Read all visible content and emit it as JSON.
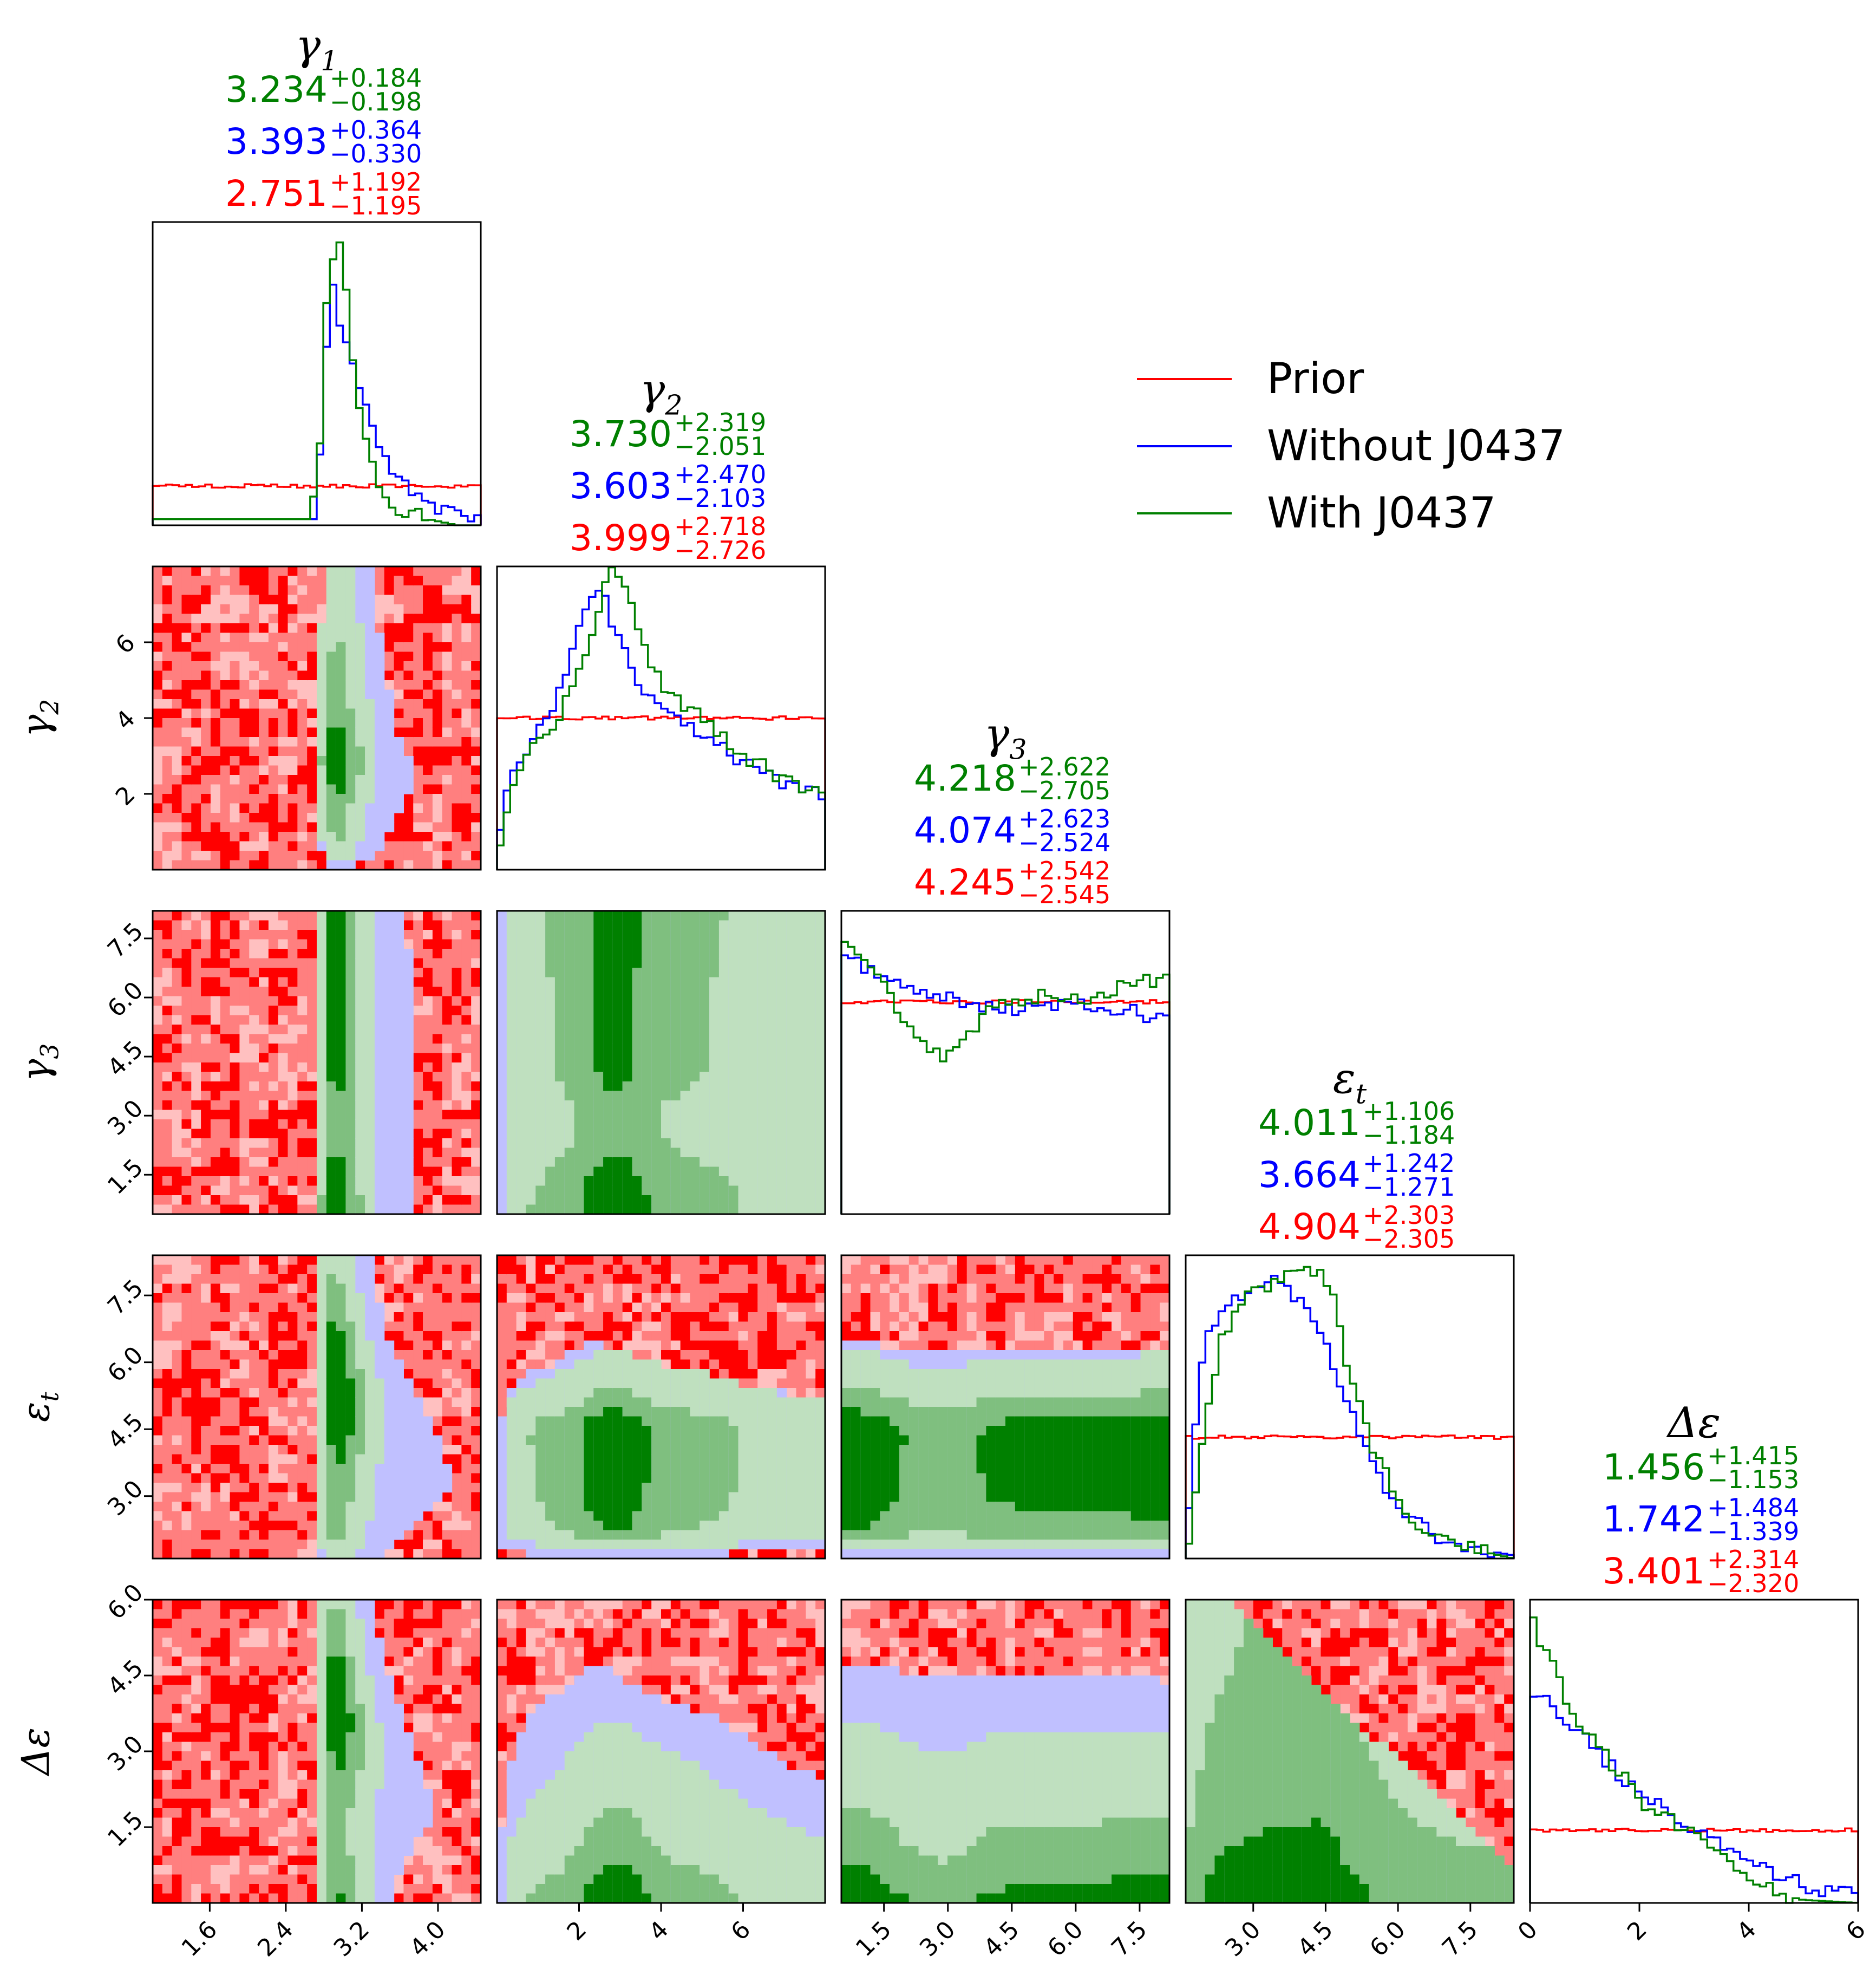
{
  "colors": {
    "prior": "#ff0000",
    "without": "#0000ff",
    "with": "#008000"
  },
  "legend": {
    "placement": "upper-right",
    "entries": [
      {
        "label": "Prior",
        "series": "prior"
      },
      {
        "label": "Without J0437",
        "series": "without"
      },
      {
        "label": "With J0437",
        "series": "with"
      }
    ]
  },
  "chart_data": {
    "type": "corner",
    "grid": false,
    "params": [
      {
        "symbol": "γ",
        "sub": "1",
        "label": "γ1",
        "range": [
          1.0,
          4.45
        ],
        "ticks": [
          1.6,
          2.4,
          3.2,
          4.0
        ],
        "tick_labels": [
          "1.6",
          "2.4",
          "3.2",
          "4.0"
        ],
        "stats": [
          {
            "series": "with",
            "median": "3.234",
            "plus": "+0.184",
            "minus": "−0.198"
          },
          {
            "series": "without",
            "median": "3.393",
            "plus": "+0.364",
            "minus": "−0.330"
          },
          {
            "series": "prior",
            "median": "2.751",
            "plus": "+1.192",
            "minus": "−1.195"
          }
        ]
      },
      {
        "symbol": "γ",
        "sub": "2",
        "label": "γ2",
        "range": [
          0.0,
          8.0
        ],
        "ticks": [
          2,
          4,
          6
        ],
        "tick_labels": [
          "2",
          "4",
          "6"
        ],
        "stats": [
          {
            "series": "with",
            "median": "3.730",
            "plus": "+2.319",
            "minus": "−2.051"
          },
          {
            "series": "without",
            "median": "3.603",
            "plus": "+2.470",
            "minus": "−2.103"
          },
          {
            "series": "prior",
            "median": "3.999",
            "plus": "+2.718",
            "minus": "−2.726"
          }
        ]
      },
      {
        "symbol": "γ",
        "sub": "3",
        "label": "γ3",
        "range": [
          0.5,
          8.2
        ],
        "ticks": [
          1.5,
          3.0,
          4.5,
          6.0,
          7.5
        ],
        "tick_labels": [
          "1.5",
          "3.0",
          "4.5",
          "6.0",
          "7.5"
        ],
        "stats": [
          {
            "series": "with",
            "median": "4.218",
            "plus": "+2.622",
            "minus": "−2.705"
          },
          {
            "series": "without",
            "median": "4.074",
            "plus": "+2.623",
            "minus": "−2.524"
          },
          {
            "series": "prior",
            "median": "4.245",
            "plus": "+2.542",
            "minus": "−2.545"
          }
        ]
      },
      {
        "symbol": "ε",
        "sub": "t",
        "label": "εt",
        "range": [
          1.6,
          8.4
        ],
        "ticks": [
          3.0,
          4.5,
          6.0,
          7.5
        ],
        "tick_labels": [
          "3.0",
          "4.5",
          "6.0",
          "7.5"
        ],
        "stats": [
          {
            "series": "with",
            "median": "4.011",
            "plus": "+1.106",
            "minus": "−1.184"
          },
          {
            "series": "without",
            "median": "3.664",
            "plus": "+1.242",
            "minus": "−1.271"
          },
          {
            "series": "prior",
            "median": "4.904",
            "plus": "+2.303",
            "minus": "−2.305"
          }
        ]
      },
      {
        "symbol": "Δε",
        "sub": "",
        "label": "Δε",
        "range": [
          0.0,
          6.0
        ],
        "ticks": [
          1.5,
          3.0,
          4.5,
          6.0
        ],
        "tick_labels": [
          "1.5",
          "3.0",
          "4.5",
          "6.0"
        ],
        "diag_ticks": [
          0,
          2,
          4,
          6
        ],
        "diag_tick_labels": [
          "0",
          "2",
          "4",
          "6"
        ],
        "stats": [
          {
            "series": "with",
            "median": "1.456",
            "plus": "+1.415",
            "minus": "−1.153"
          },
          {
            "series": "without",
            "median": "1.742",
            "plus": "+1.484",
            "minus": "−1.339"
          },
          {
            "series": "prior",
            "median": "3.401",
            "plus": "+2.314",
            "minus": "−2.320"
          }
        ]
      }
    ],
    "marginals": [
      {
        "prior": 0.13,
        "without": [
          [
            2.7,
            0.02
          ],
          [
            2.8,
            0.35
          ],
          [
            2.85,
            0.75
          ],
          [
            2.9,
            0.8
          ],
          [
            2.95,
            0.68
          ],
          [
            3.0,
            0.66
          ],
          [
            3.1,
            0.55
          ],
          [
            3.2,
            0.43
          ],
          [
            3.3,
            0.33
          ],
          [
            3.4,
            0.25
          ],
          [
            3.5,
            0.18
          ],
          [
            3.6,
            0.14
          ],
          [
            3.8,
            0.09
          ],
          [
            4.0,
            0.06
          ],
          [
            4.2,
            0.04
          ],
          [
            4.45,
            0.03
          ]
        ],
        "with": [
          [
            2.65,
            0.02
          ],
          [
            2.75,
            0.2
          ],
          [
            2.8,
            0.55
          ],
          [
            2.85,
            0.85
          ],
          [
            2.9,
            0.88
          ],
          [
            2.95,
            0.95
          ],
          [
            3.0,
            0.88
          ],
          [
            3.05,
            0.72
          ],
          [
            3.1,
            0.55
          ],
          [
            3.2,
            0.35
          ],
          [
            3.3,
            0.22
          ],
          [
            3.4,
            0.12
          ],
          [
            3.5,
            0.07
          ],
          [
            3.7,
            0.04
          ],
          [
            3.9,
            0.02
          ],
          [
            4.2,
            0.0
          ]
        ]
      },
      {
        "prior": 0.5,
        "without": [
          [
            0.0,
            0.1
          ],
          [
            0.3,
            0.28
          ],
          [
            0.8,
            0.42
          ],
          [
            1.5,
            0.58
          ],
          [
            2.0,
            0.78
          ],
          [
            2.4,
            0.95
          ],
          [
            2.6,
            0.9
          ],
          [
            3.0,
            0.75
          ],
          [
            3.5,
            0.6
          ],
          [
            4.0,
            0.52
          ],
          [
            5.0,
            0.45
          ],
          [
            6.0,
            0.35
          ],
          [
            7.0,
            0.28
          ],
          [
            8.0,
            0.25
          ]
        ],
        "with": [
          [
            0.0,
            0.05
          ],
          [
            0.3,
            0.25
          ],
          [
            0.8,
            0.38
          ],
          [
            1.5,
            0.5
          ],
          [
            2.0,
            0.65
          ],
          [
            2.5,
            0.88
          ],
          [
            2.8,
            0.98
          ],
          [
            3.2,
            0.9
          ],
          [
            3.6,
            0.72
          ],
          [
            4.2,
            0.58
          ],
          [
            5.0,
            0.5
          ],
          [
            6.0,
            0.38
          ],
          [
            7.0,
            0.3
          ],
          [
            8.0,
            0.25
          ]
        ]
      },
      {
        "prior": 0.7,
        "without": [
          [
            0.5,
            0.85
          ],
          [
            1.0,
            0.82
          ],
          [
            1.5,
            0.78
          ],
          [
            2.0,
            0.74
          ],
          [
            3.0,
            0.72
          ],
          [
            4.0,
            0.68
          ],
          [
            5.0,
            0.67
          ],
          [
            6.0,
            0.7
          ],
          [
            7.0,
            0.68
          ],
          [
            8.2,
            0.63
          ]
        ],
        "with": [
          [
            0.5,
            0.9
          ],
          [
            1.0,
            0.85
          ],
          [
            1.5,
            0.75
          ],
          [
            2.0,
            0.62
          ],
          [
            2.5,
            0.55
          ],
          [
            3.0,
            0.52
          ],
          [
            3.5,
            0.6
          ],
          [
            4.0,
            0.68
          ],
          [
            5.0,
            0.72
          ],
          [
            6.0,
            0.7
          ],
          [
            7.0,
            0.75
          ],
          [
            8.2,
            0.78
          ]
        ]
      },
      {
        "prior": 0.4,
        "without": [
          [
            1.6,
            0.05
          ],
          [
            1.8,
            0.45
          ],
          [
            2.0,
            0.75
          ],
          [
            2.5,
            0.85
          ],
          [
            3.0,
            0.9
          ],
          [
            3.5,
            0.92
          ],
          [
            4.0,
            0.85
          ],
          [
            4.5,
            0.7
          ],
          [
            5.0,
            0.5
          ],
          [
            5.5,
            0.3
          ],
          [
            6.0,
            0.18
          ],
          [
            6.5,
            0.1
          ],
          [
            7.0,
            0.05
          ],
          [
            8.4,
            0.01
          ]
        ],
        "with": [
          [
            1.6,
            0.0
          ],
          [
            1.8,
            0.2
          ],
          [
            2.0,
            0.45
          ],
          [
            2.3,
            0.7
          ],
          [
            2.8,
            0.85
          ],
          [
            3.3,
            0.9
          ],
          [
            3.8,
            0.93
          ],
          [
            4.3,
            0.95
          ],
          [
            4.7,
            0.85
          ],
          [
            5.0,
            0.6
          ],
          [
            5.5,
            0.35
          ],
          [
            6.0,
            0.2
          ],
          [
            6.5,
            0.1
          ],
          [
            7.0,
            0.05
          ],
          [
            8.4,
            0.0
          ]
        ]
      },
      {
        "prior": 0.24,
        "without": [
          [
            0.0,
            0.7
          ],
          [
            0.3,
            0.67
          ],
          [
            0.6,
            0.62
          ],
          [
            1.0,
            0.55
          ],
          [
            1.5,
            0.45
          ],
          [
            2.0,
            0.36
          ],
          [
            2.5,
            0.3
          ],
          [
            3.0,
            0.25
          ],
          [
            3.5,
            0.2
          ],
          [
            4.0,
            0.15
          ],
          [
            4.5,
            0.1
          ],
          [
            5.0,
            0.06
          ],
          [
            5.5,
            0.04
          ],
          [
            6.0,
            0.02
          ]
        ],
        "with": [
          [
            0.0,
            0.97
          ],
          [
            0.2,
            0.85
          ],
          [
            0.5,
            0.75
          ],
          [
            0.8,
            0.62
          ],
          [
            1.2,
            0.52
          ],
          [
            1.6,
            0.44
          ],
          [
            2.0,
            0.34
          ],
          [
            2.5,
            0.28
          ],
          [
            3.0,
            0.22
          ],
          [
            3.5,
            0.15
          ],
          [
            4.0,
            0.08
          ],
          [
            4.5,
            0.03
          ],
          [
            5.0,
            0.01
          ],
          [
            6.0,
            0.0
          ]
        ]
      }
    ],
    "joint_samples_note_free": true
  }
}
